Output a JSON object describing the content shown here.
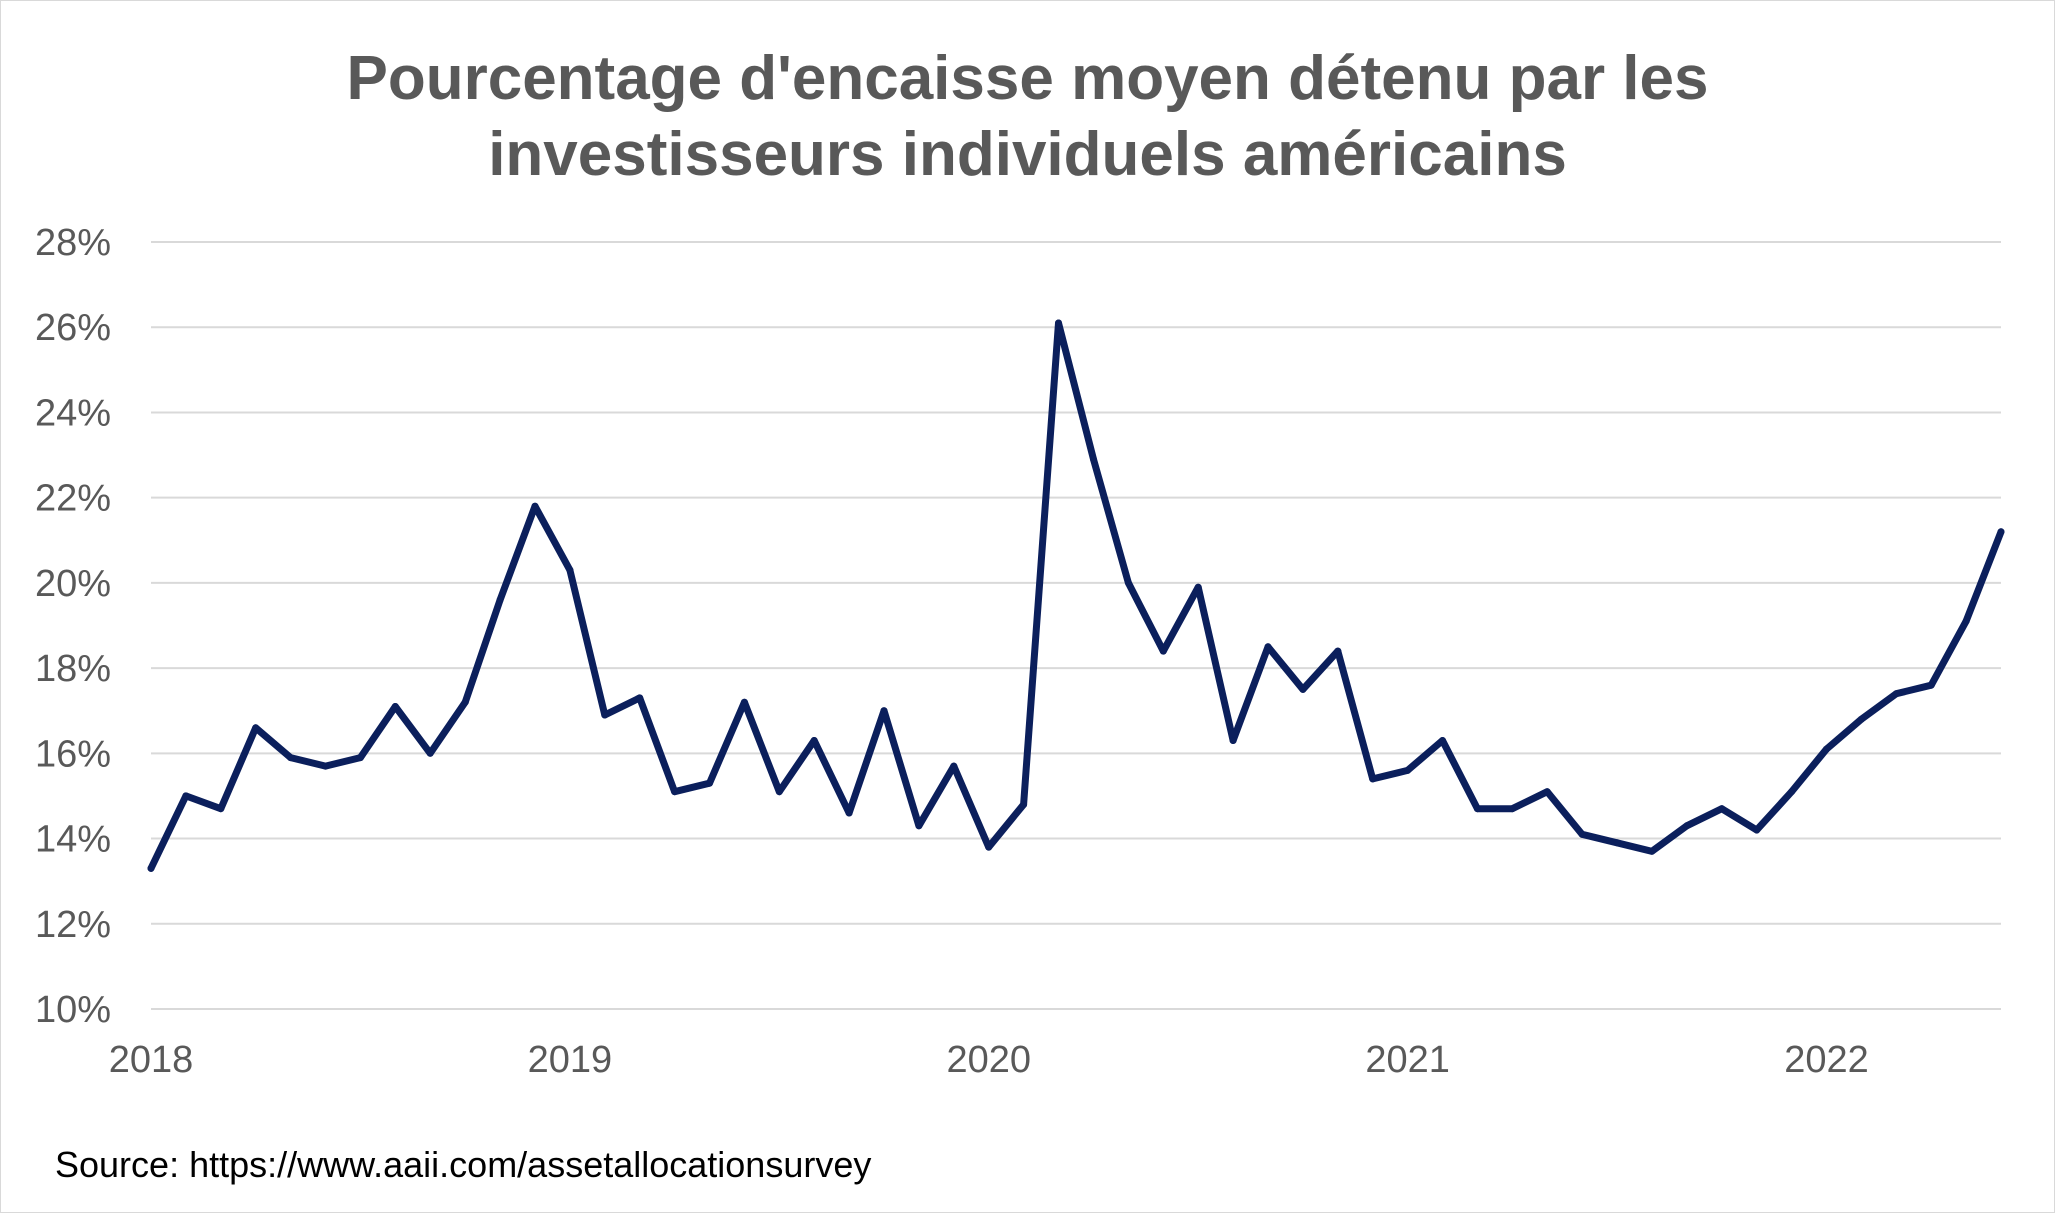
{
  "chart_data": {
    "type": "line",
    "title_lines": [
      "Pourcentage d'encaisse moyen détenu par les",
      "investisseurs individuels américains"
    ],
    "xlabel": "",
    "ylabel": "",
    "x_tick_labels": [
      "2018",
      "2019",
      "2020",
      "2021",
      "2022"
    ],
    "y_tick_labels": [
      "10%",
      "12%",
      "14%",
      "16%",
      "18%",
      "20%",
      "22%",
      "24%",
      "26%",
      "28%"
    ],
    "ylim": [
      10,
      28
    ],
    "grid": true,
    "legend": "none",
    "line_color": "#0b1f5c",
    "series": [
      {
        "x": [
          "2018-01",
          "2018-02",
          "2018-03",
          "2018-04",
          "2018-05",
          "2018-06",
          "2018-07",
          "2018-08",
          "2018-09",
          "2018-10",
          "2018-11",
          "2018-12",
          "2019-01",
          "2019-02",
          "2019-03",
          "2019-04",
          "2019-05",
          "2019-06",
          "2019-07",
          "2019-08",
          "2019-09",
          "2019-10",
          "2019-11",
          "2019-12",
          "2020-01",
          "2020-02",
          "2020-03",
          "2020-04",
          "2020-05",
          "2020-06",
          "2020-07",
          "2020-08",
          "2020-09",
          "2020-10",
          "2020-11",
          "2020-12",
          "2021-01",
          "2021-02",
          "2021-03",
          "2021-04",
          "2021-05",
          "2021-06",
          "2021-07",
          "2021-08",
          "2021-09",
          "2021-10",
          "2021-11",
          "2021-12",
          "2022-01",
          "2022-02",
          "2022-03",
          "2022-04",
          "2022-05",
          "2022-06"
        ],
        "values": [
          13.3,
          15.0,
          14.7,
          16.6,
          15.9,
          15.7,
          15.9,
          17.1,
          16.0,
          17.2,
          19.6,
          21.8,
          20.3,
          16.9,
          17.3,
          15.1,
          15.3,
          17.2,
          15.1,
          16.3,
          14.6,
          17.0,
          14.3,
          15.7,
          13.8,
          14.8,
          26.1,
          22.9,
          20.0,
          18.4,
          19.9,
          16.3,
          18.5,
          17.5,
          18.4,
          15.4,
          15.6,
          16.3,
          14.7,
          14.7,
          15.1,
          14.1,
          13.9,
          13.7,
          14.3,
          14.7,
          14.2,
          15.1,
          16.1,
          16.8,
          17.4,
          17.6,
          19.1,
          21.2
        ]
      }
    ]
  },
  "source": "Source: https://www.aaii.com/assetallocationsurvey"
}
